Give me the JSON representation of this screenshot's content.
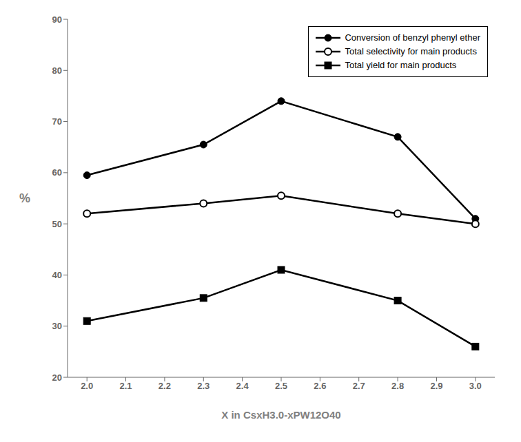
{
  "chart_data": {
    "type": "line",
    "x_label": "X in CsxH3.0-xPW12O40",
    "y_label": "%",
    "x": [
      2.0,
      2.3,
      2.5,
      2.8,
      3.0
    ],
    "series": [
      {
        "name": "Conversion of benzyl phenyl ether",
        "color": "#000000",
        "marker": "circle",
        "values": [
          59.5,
          65.5,
          74.0,
          67.0,
          51.0
        ]
      },
      {
        "name": "Total selectivity for main products",
        "color": "#000000",
        "marker": "open_circle",
        "values": [
          52.0,
          54.0,
          55.5,
          52.0,
          50.0
        ]
      },
      {
        "name": "Total yield for main products",
        "color": "#000000",
        "marker": "square",
        "values": [
          31.0,
          35.5,
          41.0,
          35.0,
          26.0
        ]
      }
    ],
    "xlim": [
      1.95,
      3.05
    ],
    "ylim": [
      20,
      90
    ],
    "xticks": [
      {
        "value": 2.0,
        "label": "2.0"
      },
      2.1,
      2.2,
      2.3,
      2.4,
      2.5,
      2.6,
      2.7,
      2.8,
      2.9,
      {
        "value": 3.0,
        "label": "3.0"
      }
    ],
    "yticks": [
      20,
      30,
      40,
      50,
      60,
      70,
      80,
      90
    ],
    "grid": false,
    "legend": "upper right"
  }
}
